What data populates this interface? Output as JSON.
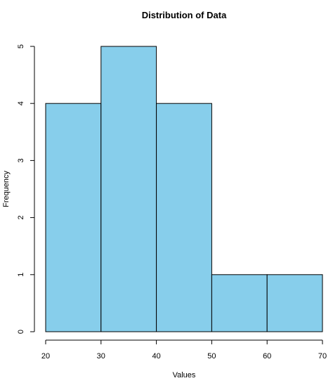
{
  "chart_data": {
    "type": "bar",
    "title": "Distribution of Data",
    "xlabel": "Values",
    "ylabel": "Frequency",
    "bins": [
      {
        "from": 20,
        "to": 30,
        "count": 4
      },
      {
        "from": 30,
        "to": 40,
        "count": 5
      },
      {
        "from": 40,
        "to": 50,
        "count": 4
      },
      {
        "from": 50,
        "to": 60,
        "count": 1
      },
      {
        "from": 60,
        "to": 70,
        "count": 1
      }
    ],
    "xlim": [
      20,
      70
    ],
    "ylim": [
      0,
      5
    ],
    "x_ticks": [
      20,
      30,
      40,
      50,
      60,
      70
    ],
    "y_ticks": [
      0,
      1,
      2,
      3,
      4,
      5
    ],
    "bar_color": "#87CEEB",
    "grid": false
  }
}
